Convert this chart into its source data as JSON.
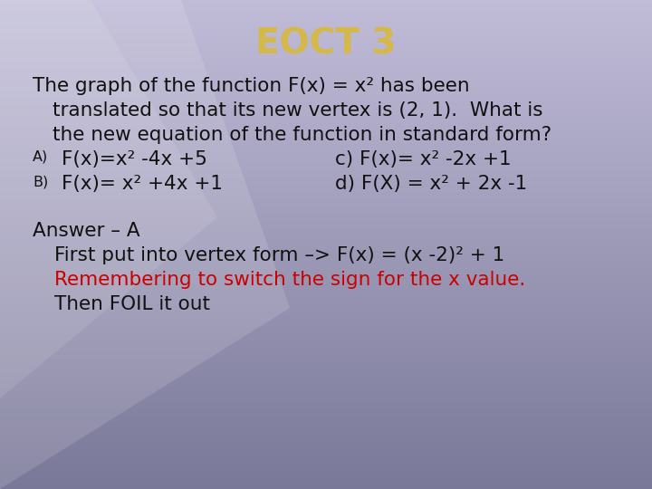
{
  "title": "EOCT 3",
  "title_color": "#d4b84a",
  "title_fontsize": 28,
  "bg_top": "#c0bcd8",
  "bg_bottom": "#7a7898",
  "question_line1": "The graph of the function F(x) = x² has been",
  "question_line2": "translated so that its new vertex is (2, 1).  What is",
  "question_line3": "the new equation of the function in standard form?",
  "optionA_label": "A)",
  "optionA": "F(x)=x² -4x +5",
  "optionC": "c) F(x)= x² -2x +1",
  "optionB_label": "B)",
  "optionB": "F(x)= x² +4x +1",
  "optionD": "d) F(X) = x² + 2x -1",
  "answer_line1": "Answer – A",
  "answer_line2": "First put into vertex form –> F(x) = (x -2)² + 1",
  "answer_line3": "Remembering to switch the sign for the x value.",
  "answer_line4": "Then FOIL it out",
  "text_color": "#111111",
  "red_color": "#cc0000",
  "body_fontsize": 15.5,
  "small_fontsize": 11.5
}
